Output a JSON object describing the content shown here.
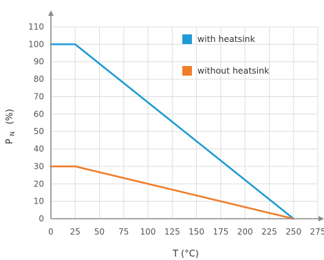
{
  "chart_data": {
    "type": "line",
    "xlabel": "T (°C)",
    "ylabel_main": "P",
    "ylabel_sub": "N",
    "ylabel_unit": "(%)",
    "xlim": [
      0,
      275
    ],
    "ylim": [
      0,
      110
    ],
    "x_ticks": [
      0,
      25,
      50,
      75,
      100,
      125,
      150,
      175,
      200,
      225,
      250,
      275
    ],
    "y_ticks": [
      0,
      10,
      20,
      30,
      40,
      50,
      60,
      70,
      80,
      90,
      100,
      110
    ],
    "grid": true,
    "legend_position": "top-right",
    "series": [
      {
        "name": "with heatsink",
        "color": "#1f9bd7",
        "x": [
          0,
          25,
          250
        ],
        "y": [
          100,
          100,
          0
        ]
      },
      {
        "name": "without heatsink",
        "color": "#f07d2a",
        "x": [
          0,
          25,
          250
        ],
        "y": [
          30,
          30,
          0
        ]
      }
    ]
  }
}
